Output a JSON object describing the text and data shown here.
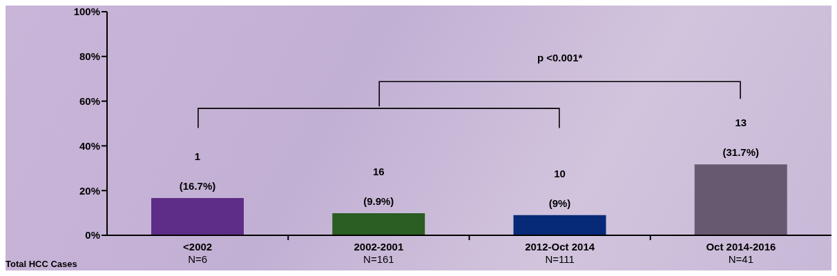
{
  "chart_data": {
    "type": "bar",
    "categories": [
      "<2002\nN=6",
      "2002-2001\nN=161",
      "2012-Oct 2014\nN=111",
      "Oct 2014-2016\nN=41"
    ],
    "values": [
      16.7,
      9.9,
      9,
      31.7
    ],
    "colors": [
      "#5e2d87",
      "#2a5e22",
      "#062a78",
      "#675a70"
    ],
    "value_labels": [
      "(16.7%)",
      "(9.9%)",
      "(9%)",
      "(31.7%)"
    ],
    "ylim": [
      0,
      100
    ],
    "yticks": [
      {
        "value": 0,
        "label": "0%"
      },
      {
        "value": 20,
        "label": "20%"
      },
      {
        "value": 40,
        "label": "40%"
      },
      {
        "value": 60,
        "label": "60%"
      },
      {
        "value": 80,
        "label": "80%"
      },
      {
        "value": 100,
        "label": "100%"
      }
    ],
    "annotations": [
      "p <0.001*",
      "Total HCC Cases",
      "1",
      "16",
      "10",
      "13"
    ],
    "grid": false,
    "legend": false
  }
}
